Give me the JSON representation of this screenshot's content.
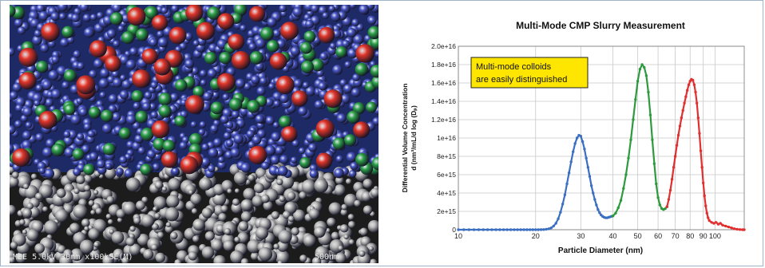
{
  "micrograph": {
    "caption": "MEE 5.0kV 30mm x100kSE(M)",
    "scale_label": "500nm",
    "colors": {
      "small": "#4a58c8",
      "medium": "#2ea34a",
      "large": "#e2362a",
      "sem": "#8a8a8a"
    }
  },
  "chart_data": {
    "type": "line",
    "title": "Multi-Mode CMP Slurry Measurement",
    "xlabel": "Particle Diameter (nm)",
    "ylabel_line1": "Differential Volume Concentration",
    "ylabel_line2": "d (nm³/mL/d log (Dₚ)",
    "x_scale": "log",
    "xlim": [
      10,
      130
    ],
    "ylim": [
      0,
      2e+16
    ],
    "x_ticks": [
      10,
      20,
      30,
      40,
      50,
      60,
      70,
      80,
      90,
      100
    ],
    "x_tick_labels": [
      "10",
      "20",
      "30",
      "40",
      "50",
      "60",
      "70",
      "80",
      "90",
      "100"
    ],
    "y_ticks": [
      0,
      2000000000000000.0,
      4000000000000000.0,
      6000000000000000.0,
      8000000000000000.0,
      1e+16,
      1.2e+16,
      1.4e+16,
      1.6e+16,
      1.8e+16,
      2e+16
    ],
    "y_tick_labels": [
      "0",
      "2e+15",
      "4e+15",
      "6e+15",
      "8e+15",
      "1e+16",
      "1.2e+16",
      "1.4e+16",
      "1.6e+16",
      "1.8e+16",
      "2.0e+16"
    ],
    "grid": true,
    "annotation": {
      "line1": "Multi-mode colloids",
      "line2": "are easily distinguished",
      "background": "#ffe600"
    },
    "series": [
      {
        "color": "#3b6fc1",
        "x": [
          10,
          10.5,
          11,
          11.5,
          12,
          12.5,
          13,
          13.5,
          14,
          14.5,
          15,
          15.5,
          16,
          16.5,
          17,
          17.5,
          18,
          18.5,
          19,
          19.5,
          20,
          20.5,
          21,
          21.5,
          22,
          22.5,
          23,
          23.5,
          24,
          24.5,
          25,
          25.5,
          26,
          26.5,
          27,
          27.5,
          28,
          28.5,
          29,
          29.5,
          30,
          30.5,
          31,
          31.5,
          32,
          32.5,
          33,
          33.5,
          34,
          34.5,
          35,
          35.5,
          36,
          36.5,
          37,
          37.5,
          38,
          38.5,
          39,
          39.5,
          40
        ],
        "y": [
          0,
          0,
          0,
          0,
          0,
          0,
          0,
          0,
          0,
          0,
          0,
          0,
          0,
          0,
          0,
          0,
          0,
          0,
          0,
          0,
          0,
          0,
          10000000000000.0,
          20000000000000.0,
          50000000000000.0,
          100000000000000.0,
          200000000000000.0,
          400000000000000.0,
          700000000000000.0,
          1200000000000000.0,
          1900000000000000.0,
          2800000000000000.0,
          3800000000000000.0,
          5000000000000000.0,
          6200000000000000.0,
          7400000000000000.0,
          8500000000000000.0,
          9400000000000000.0,
          1e+16,
          1.03e+16,
          1.02e+16,
          9600000000000000.0,
          8800000000000000.0,
          7800000000000000.0,
          6800000000000000.0,
          5800000000000000.0,
          4800000000000000.0,
          4000000000000000.0,
          3300000000000000.0,
          2700000000000000.0,
          2200000000000000.0,
          1850000000000000.0,
          1600000000000000.0,
          1450000000000000.0,
          1350000000000000.0,
          1300000000000000.0,
          1300000000000000.0,
          1350000000000000.0,
          1400000000000000.0,
          1450000000000000.0,
          1500000000000000.0
        ]
      },
      {
        "color": "#2e9a3e",
        "x": [
          40,
          41,
          42,
          43,
          44,
          45,
          46,
          47,
          48,
          49,
          50,
          51,
          52,
          53,
          54,
          55,
          56,
          57,
          58,
          59,
          60,
          61,
          62,
          63,
          64,
          65
        ],
        "y": [
          1500000000000000.0,
          1800000000000000.0,
          2400000000000000.0,
          3200000000000000.0,
          4500000000000000.0,
          6000000000000000.0,
          7800000000000000.0,
          9800000000000000.0,
          1.2e+16,
          1.42e+16,
          1.62e+16,
          1.75e+16,
          1.8e+16,
          1.77e+16,
          1.68e+16,
          1.5e+16,
          1.25e+16,
          9800000000000000.0,
          7200000000000000.0,
          5000000000000000.0,
          3500000000000000.0,
          2700000000000000.0,
          2300000000000000.0,
          2200000000000000.0,
          2300000000000000.0,
          2500000000000000.0
        ]
      },
      {
        "color": "#e03030",
        "x": [
          65,
          66,
          67,
          68,
          69,
          70,
          71,
          72,
          73,
          74,
          75,
          76,
          77,
          78,
          79,
          80,
          81,
          82,
          83,
          84,
          85,
          86,
          87,
          88,
          89,
          90,
          91,
          92,
          93,
          94,
          95,
          97,
          99,
          101,
          103,
          105,
          107,
          110,
          113,
          116,
          119,
          122,
          125,
          128,
          130
        ],
        "y": [
          2500000000000000.0,
          3300000000000000.0,
          4300000000000000.0,
          5500000000000000.0,
          6800000000000000.0,
          8000000000000000.0,
          9200000000000000.0,
          1.03e+16,
          1.13e+16,
          1.22e+16,
          1.3e+16,
          1.38e+16,
          1.45e+16,
          1.52e+16,
          1.58e+16,
          1.62e+16,
          1.64e+16,
          1.63e+16,
          1.58e+16,
          1.5e+16,
          1.38e+16,
          1.22e+16,
          1.05e+16,
          8600000000000000.0,
          6800000000000000.0,
          5100000000000000.0,
          3700000000000000.0,
          2600000000000000.0,
          1800000000000000.0,
          1300000000000000.0,
          1000000000000000.0,
          800000000000000.0,
          700000000000000.0,
          800000000000000.0,
          600000000000000.0,
          700000000000000.0,
          500000000000000.0,
          400000000000000.0,
          300000000000000.0,
          200000000000000.0,
          100000000000000.0,
          50000000000000.0,
          20000000000000.0,
          0,
          0
        ]
      }
    ]
  }
}
